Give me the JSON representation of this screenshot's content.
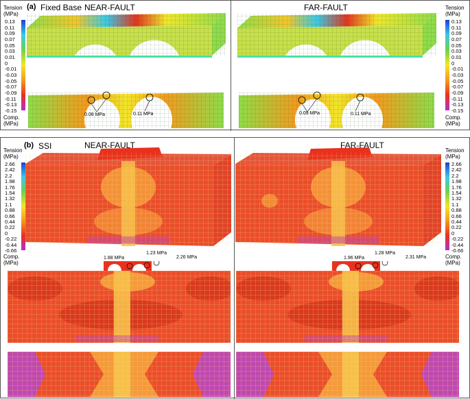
{
  "panel_a": {
    "tag": "(a)",
    "subtitle": "Fixed Base",
    "left_title": "NEAR-FAULT",
    "right_title": "FAR-FAULT",
    "scale_top_label": "Tension",
    "scale_unit": "(MPa)",
    "scale_bottom_label": "Comp.",
    "ticks": [
      "0.13",
      "0.11",
      "0.09",
      "0.07",
      "0.05",
      "0.03",
      "0.01",
      "0",
      "-0.01",
      "-0.03",
      "-0.05",
      "-0.07",
      "-0.09",
      "-0.11",
      "-0.13",
      "-0.15"
    ],
    "near_annotations": [
      "0.08 MPa",
      "0.11 MPa"
    ],
    "far_annotations": [
      "0.09 MPa",
      "0.11 MPa"
    ]
  },
  "panel_b": {
    "tag": "(b)",
    "subtitle": "SSI",
    "left_title": "NEAR-FAULT",
    "right_title": "FAR-FAULT",
    "scale_top_label": "Tension",
    "scale_unit": "(MPa)",
    "scale_bottom_label": "Comp.",
    "ticks": [
      "2.66",
      "2.42",
      "2.2",
      "1.98",
      "1.76",
      "1.54",
      "1.32",
      "1.1",
      "0.88",
      "0.66",
      "0.44",
      "0.22",
      "0",
      "-0.22",
      "-0.44",
      "-0.66"
    ],
    "near_annotations": [
      "1.88 MPa",
      "1.23 MPa",
      "2.26 MPa"
    ],
    "far_annotations": [
      "1.96 MPa",
      "1.28 MPa",
      "2.31 MPa"
    ]
  },
  "colors": {
    "tension_max": "#1f3fd6",
    "cyan": "#39c9e8",
    "green": "#6fd24a",
    "yellow": "#f2e62a",
    "orange": "#f59a1e",
    "red": "#e8321e",
    "comp_max": "#b02fd0",
    "mesh_base": "#ef5a2c",
    "mesh_light": "#f7a43c"
  }
}
